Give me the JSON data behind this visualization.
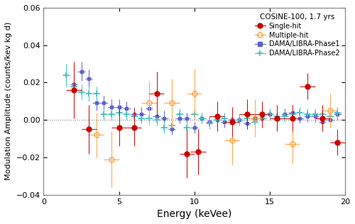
{
  "title": "COSINE-100, 1.7 yrs",
  "xlabel": "Energy (keVee)",
  "ylabel": "Modulation Amplitude (counts/kev kg d)",
  "xlim": [
    0,
    20
  ],
  "ylim": [
    -0.04,
    0.06
  ],
  "yticks": [
    -0.04,
    -0.02,
    0,
    0.02,
    0.04,
    0.06
  ],
  "xticks": [
    0,
    5,
    10,
    15,
    20
  ],
  "single_hit": {
    "color": "#cc0000",
    "x": [
      2.0,
      3.0,
      5.0,
      6.0,
      7.5,
      9.5,
      10.25,
      11.5,
      12.5,
      13.5,
      14.5,
      15.5,
      16.5,
      17.5,
      18.5,
      19.5
    ],
    "y": [
      0.016,
      -0.005,
      -0.004,
      -0.004,
      0.014,
      -0.018,
      -0.017,
      0.002,
      -0.001,
      0.003,
      0.003,
      0.001,
      0.001,
      0.018,
      0.001,
      -0.012
    ],
    "xerr": [
      0.5,
      0.5,
      0.5,
      0.5,
      0.5,
      0.5,
      0.5,
      0.5,
      0.5,
      0.5,
      0.5,
      0.5,
      0.5,
      0.5,
      0.5,
      0.5
    ],
    "yerr": [
      0.015,
      0.013,
      0.01,
      0.01,
      0.012,
      0.013,
      0.012,
      0.008,
      0.008,
      0.008,
      0.007,
      0.007,
      0.007,
      0.007,
      0.007,
      0.007
    ]
  },
  "multiple_hit": {
    "color": "#ffa040",
    "x": [
      3.5,
      4.5,
      7.0,
      8.5,
      10.0,
      12.5,
      14.0,
      16.5,
      19.0
    ],
    "y": [
      -0.008,
      -0.021,
      0.009,
      0.009,
      0.014,
      -0.011,
      0.001,
      -0.013,
      0.005
    ],
    "xerr": [
      0.5,
      0.5,
      0.5,
      0.5,
      0.5,
      0.5,
      0.5,
      0.5,
      0.5
    ],
    "yerr": [
      0.012,
      0.015,
      0.012,
      0.013,
      0.013,
      0.013,
      0.01,
      0.01,
      0.009
    ]
  },
  "dama_phase1": {
    "color": "#6060cc",
    "x": [
      2.0,
      2.5,
      3.0,
      3.5,
      4.0,
      4.5,
      5.0,
      5.5,
      6.0,
      6.5,
      7.0,
      7.5,
      8.0,
      8.5,
      9.0,
      9.5,
      10.0,
      10.5,
      11.0,
      11.5,
      12.0,
      12.5,
      13.0,
      13.5,
      14.0,
      14.5,
      15.0,
      15.5,
      16.0,
      16.5,
      17.0,
      17.5,
      18.0,
      18.5,
      19.0,
      19.5
    ],
    "y": [
      0.019,
      0.026,
      0.022,
      0.009,
      0.009,
      0.007,
      0.007,
      0.006,
      0.003,
      0.003,
      0.006,
      0.002,
      0.001,
      -0.005,
      0.001,
      0.001,
      -0.004,
      0.001,
      -0.001,
      0.0,
      -0.001,
      0.0,
      0.0,
      -0.002,
      0.001,
      0.001,
      0.003,
      0.001,
      0.003,
      0.004,
      0.001,
      0.002,
      0.002,
      -0.001,
      0.0,
      0.003
    ],
    "xerr": [
      0.25,
      0.25,
      0.25,
      0.25,
      0.25,
      0.25,
      0.25,
      0.25,
      0.25,
      0.25,
      0.25,
      0.25,
      0.25,
      0.25,
      0.25,
      0.25,
      0.25,
      0.25,
      0.25,
      0.25,
      0.25,
      0.25,
      0.25,
      0.25,
      0.25,
      0.25,
      0.25,
      0.25,
      0.25,
      0.25,
      0.25,
      0.25,
      0.25,
      0.25,
      0.25,
      0.25
    ],
    "yerr": [
      0.005,
      0.005,
      0.005,
      0.004,
      0.004,
      0.004,
      0.004,
      0.004,
      0.004,
      0.004,
      0.004,
      0.004,
      0.004,
      0.003,
      0.003,
      0.003,
      0.003,
      0.003,
      0.003,
      0.003,
      0.003,
      0.003,
      0.003,
      0.003,
      0.003,
      0.003,
      0.003,
      0.003,
      0.003,
      0.003,
      0.003,
      0.003,
      0.003,
      0.003,
      0.003,
      0.003
    ]
  },
  "dama_phase2": {
    "color": "#40c0c0",
    "x": [
      1.5,
      2.0,
      2.5,
      3.0,
      3.5,
      4.0,
      4.5,
      5.0,
      5.5,
      6.0,
      6.5,
      7.0,
      7.5,
      8.0,
      8.5,
      9.0,
      9.5,
      10.0,
      10.5,
      11.0,
      11.5,
      12.0,
      12.5,
      13.0,
      13.5,
      14.0,
      14.5,
      15.0,
      15.5,
      16.0,
      16.5,
      17.0,
      17.5,
      18.0,
      18.5,
      19.0,
      19.5
    ],
    "y": [
      0.024,
      0.018,
      0.015,
      0.014,
      0.014,
      0.003,
      0.003,
      0.004,
      0.003,
      0.002,
      0.001,
      0.001,
      0.0,
      -0.004,
      -0.003,
      0.003,
      -0.004,
      0.003,
      0.001,
      -0.002,
      0.0,
      0.001,
      0.0,
      0.0,
      0.001,
      -0.001,
      0.001,
      0.003,
      0.002,
      0.002,
      0.003,
      0.004,
      0.003,
      0.003,
      0.003,
      0.002,
      0.004
    ],
    "xerr": [
      0.25,
      0.25,
      0.25,
      0.25,
      0.25,
      0.25,
      0.25,
      0.25,
      0.25,
      0.25,
      0.25,
      0.25,
      0.25,
      0.25,
      0.25,
      0.25,
      0.25,
      0.25,
      0.25,
      0.25,
      0.25,
      0.25,
      0.25,
      0.25,
      0.25,
      0.25,
      0.25,
      0.25,
      0.25,
      0.25,
      0.25,
      0.25,
      0.25,
      0.25,
      0.25,
      0.25,
      0.25
    ],
    "yerr": [
      0.006,
      0.005,
      0.004,
      0.004,
      0.004,
      0.003,
      0.003,
      0.003,
      0.003,
      0.003,
      0.003,
      0.003,
      0.003,
      0.003,
      0.003,
      0.003,
      0.003,
      0.003,
      0.003,
      0.003,
      0.003,
      0.003,
      0.003,
      0.003,
      0.003,
      0.003,
      0.003,
      0.003,
      0.003,
      0.003,
      0.003,
      0.003,
      0.003,
      0.003,
      0.003,
      0.003,
      0.003
    ]
  },
  "legend_title": "COSINE-100, 1.7 yrs",
  "legend_labels": [
    "Single-hit",
    "Multiple-hit",
    "DAMA/LIBRA-Phase1",
    "DAMA/LIBRA-Phase2"
  ],
  "legend_colors": [
    "#cc0000",
    "#ffa040",
    "#6060cc",
    "#40c0c0"
  ],
  "background_color": "#ffffff"
}
